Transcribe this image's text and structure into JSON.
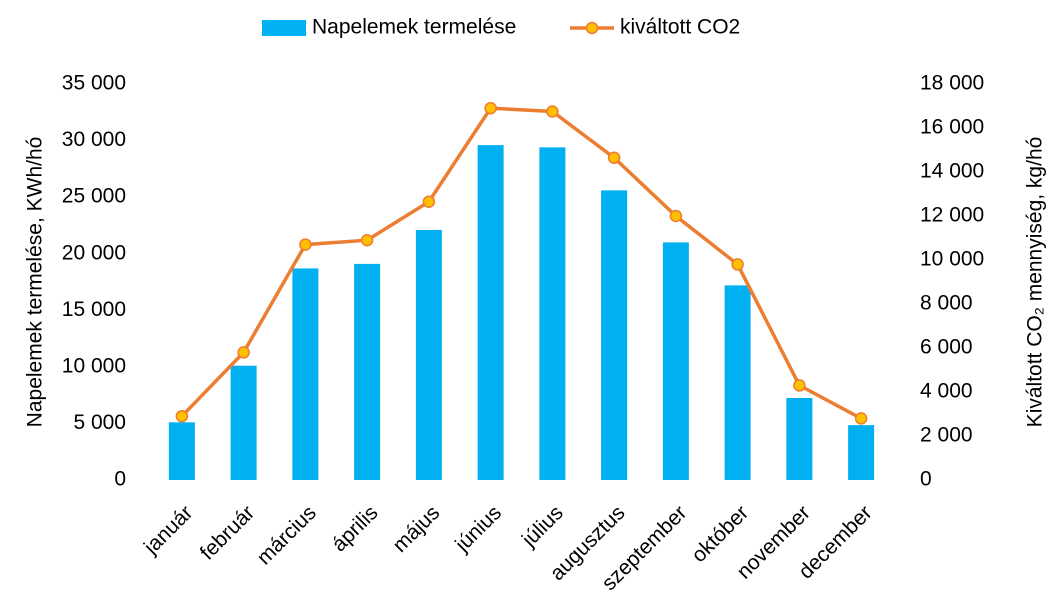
{
  "chart_data": {
    "type": "bar_line",
    "categories": [
      "január",
      "február",
      "március",
      "április",
      "május",
      "június",
      "július",
      "augusztus",
      "szeptember",
      "október",
      "november",
      "december"
    ],
    "series": [
      {
        "name": "Napelemek termelése",
        "type": "bar",
        "color": "#00b0f0",
        "values": [
          5100,
          10100,
          18700,
          19100,
          22100,
          29600,
          29400,
          25600,
          21000,
          17200,
          7250,
          4850
        ]
      },
      {
        "name": "kiváltott CO2",
        "type": "line",
        "axis": "y2",
        "color": "#ed7d31",
        "marker_color": "#ffc000",
        "values": [
          2900,
          5800,
          10700,
          10900,
          12650,
          16900,
          16750,
          14650,
          12000,
          9800,
          4300,
          2800
        ]
      }
    ],
    "ylabel": "Napelemek  termelése, KWh/hó",
    "y2label": "Kiváltott CO₂ mennyiség, kg/hó",
    "ylim": [
      0,
      35000
    ],
    "yticks": [
      0,
      {
        "value": 5000,
        "label": "5 000"
      },
      {
        "value": 10000,
        "label": "10 000"
      },
      {
        "value": 15000,
        "label": "15 000"
      },
      {
        "value": 20000,
        "label": "20 000"
      },
      {
        "value": 25000,
        "label": "25 000"
      },
      {
        "value": 30000,
        "label": "30 000"
      },
      {
        "value": 35000,
        "label": "35 000"
      }
    ],
    "y2lim": [
      0,
      18000
    ],
    "y2ticks": [
      0,
      {
        "value": 2000,
        "label": "2 000"
      },
      {
        "value": 4000,
        "label": "4 000"
      },
      {
        "value": 6000,
        "label": "6 000"
      },
      {
        "value": 8000,
        "label": "8 000"
      },
      {
        "value": 10000,
        "label": "10 000"
      },
      {
        "value": 12000,
        "label": "12 000"
      },
      {
        "value": 14000,
        "label": "14 000"
      },
      {
        "value": 16000,
        "label": "16 000"
      },
      {
        "value": 18000,
        "label": "18 000"
      }
    ],
    "grid": false,
    "legend": "top"
  }
}
